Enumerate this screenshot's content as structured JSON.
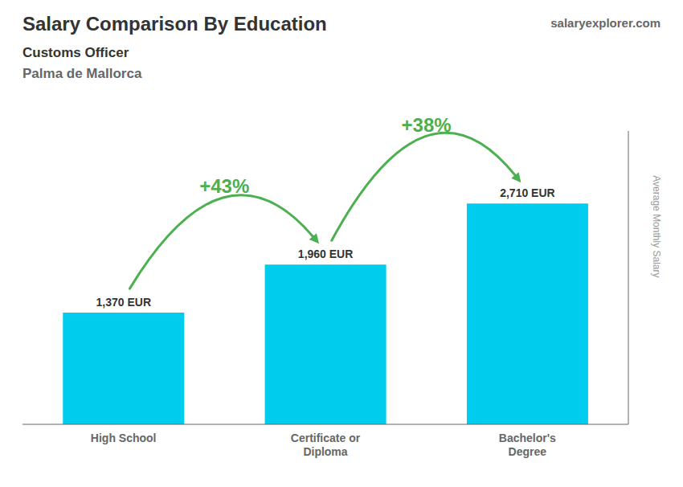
{
  "chart_data": {
    "type": "bar",
    "title": "Salary Comparison By Education",
    "subtitle": [
      "Customs Officer",
      "Palma de Mallorca"
    ],
    "source": "salaryexplorer.com",
    "y_label": "Average Monthly Salary",
    "categories": [
      "High School",
      "Certificate or\nDiploma",
      "Bachelor's\nDegree"
    ],
    "values": [
      1370,
      1960,
      2710
    ],
    "value_labels": [
      "1,370 EUR",
      "1,960 EUR",
      "2,710 EUR"
    ],
    "data_labels": true,
    "annotations": [
      "+43%",
      "+38%"
    ],
    "color": "#00CCEE",
    "ylim": [
      0,
      3600
    ],
    "tick_labels": false,
    "grid": false
  }
}
